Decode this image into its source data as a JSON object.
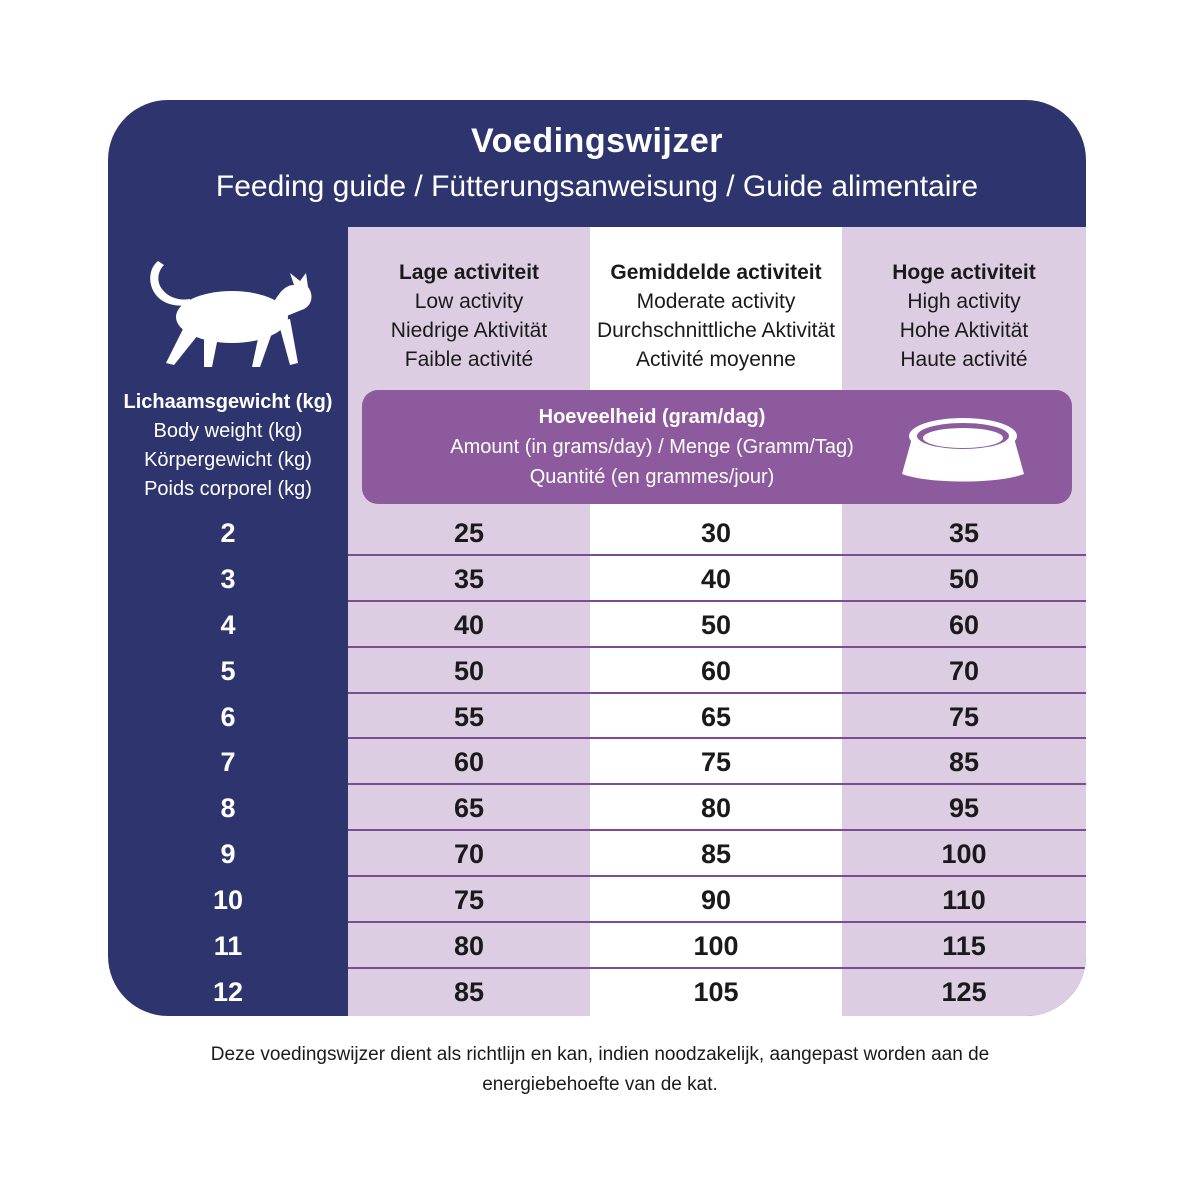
{
  "header": {
    "title": "Voedingswijzer",
    "subtitle": "Feeding guide / Fütterungsanweisung / Guide alimentaire"
  },
  "weight_header": {
    "nl": "Lichaamsgewicht (kg)",
    "en": "Body weight (kg)",
    "de": "Körpergewicht (kg)",
    "fr": "Poids corporel (kg)"
  },
  "activities": [
    {
      "nl": "Lage activiteit",
      "en": "Low activity",
      "de": "Niedrige Aktivität",
      "fr": "Faible activité"
    },
    {
      "nl": "Gemiddelde activiteit",
      "en": "Moderate activity",
      "de": "Durchschnittliche Aktivität",
      "fr": "Activité moyenne"
    },
    {
      "nl": "Hoge activiteit",
      "en": "High activity",
      "de": "Hohe Aktivität",
      "fr": "Haute activité"
    }
  ],
  "amount": {
    "nl": "Hoeveelheid (gram/dag)",
    "en_de": "Amount (in grams/day) / Menge (Gramm/Tag)",
    "fr": "Quantité (en grammes/jour)"
  },
  "icons": {
    "cat": "cat-icon",
    "bowl": "food-bowl-icon"
  },
  "colors": {
    "navy": "#2e356e",
    "lavender": "#ddcde3",
    "purple": "#8c5a9d",
    "separator": "#7a4c91"
  },
  "rows": [
    {
      "weight": "2",
      "low": "25",
      "moderate": "30",
      "high": "35"
    },
    {
      "weight": "3",
      "low": "35",
      "moderate": "40",
      "high": "50"
    },
    {
      "weight": "4",
      "low": "40",
      "moderate": "50",
      "high": "60"
    },
    {
      "weight": "5",
      "low": "50",
      "moderate": "60",
      "high": "70"
    },
    {
      "weight": "6",
      "low": "55",
      "moderate": "65",
      "high": "75"
    },
    {
      "weight": "7",
      "low": "60",
      "moderate": "75",
      "high": "85"
    },
    {
      "weight": "8",
      "low": "65",
      "moderate": "80",
      "high": "95"
    },
    {
      "weight": "9",
      "low": "70",
      "moderate": "85",
      "high": "100"
    },
    {
      "weight": "10",
      "low": "75",
      "moderate": "90",
      "high": "110"
    },
    {
      "weight": "11",
      "low": "80",
      "moderate": "100",
      "high": "115"
    },
    {
      "weight": "12",
      "low": "85",
      "moderate": "105",
      "high": "125"
    }
  ],
  "footnote": {
    "line1": "Deze voedingswijzer dient als richtlijn en kan, indien noodzakelijk, aangepast worden aan de",
    "line2": "energiebehoefte van de kat."
  }
}
